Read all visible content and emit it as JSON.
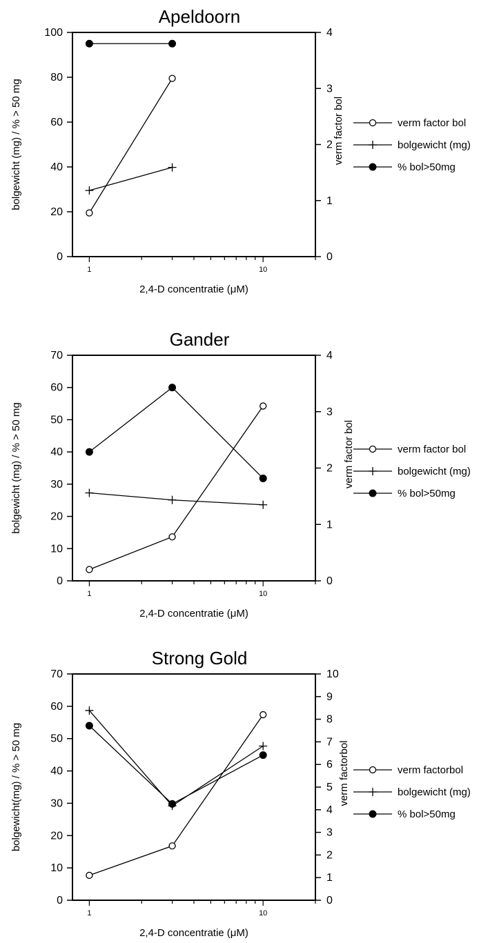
{
  "colors": {
    "line": "#000000",
    "open_marker_fill": "#ffffff",
    "filled_marker_fill": "#000000"
  },
  "chart_data": [
    {
      "type": "line",
      "title": "Apeldoorn",
      "xlabel": "2,4-D concentratie (μM)",
      "ylabel": "bolgewicht (mg) / % > 50 mg",
      "y2label": "verm factor bol",
      "x_scale": "log",
      "xlim": [
        0.8,
        20
      ],
      "x_tick_labels": [
        "1",
        "10"
      ],
      "ylim": [
        0,
        100
      ],
      "y_ticks": [
        0,
        20,
        40,
        60,
        80,
        100
      ],
      "y2lim": [
        0,
        4
      ],
      "y2_ticks": [
        0,
        1,
        2,
        3,
        4
      ],
      "legend_position": "right",
      "series": [
        {
          "name": "verm factor bol",
          "marker": "open-circle",
          "axis": "right",
          "x": [
            1,
            3
          ],
          "values": [
            0.78,
            3.18
          ]
        },
        {
          "name": "bolgewicht (mg)",
          "marker": "plus",
          "axis": "left",
          "x": [
            1,
            3
          ],
          "values": [
            29.5,
            39.8
          ]
        },
        {
          "name": "% bol>50mg",
          "marker": "filled-circle",
          "axis": "left",
          "x": [
            1,
            3
          ],
          "values": [
            95,
            95
          ]
        }
      ]
    },
    {
      "type": "line",
      "title": "Gander",
      "xlabel": "2,4-D concentratie (μM)",
      "ylabel": "bolgewicht (mg) / % > 50 mg",
      "y2label": "verm factor bol",
      "x_scale": "log",
      "xlim": [
        0.8,
        20
      ],
      "x_tick_labels": [
        "1",
        "10"
      ],
      "ylim": [
        0,
        70
      ],
      "y_ticks": [
        0,
        10,
        20,
        30,
        40,
        50,
        60,
        70
      ],
      "y2lim": [
        0,
        4
      ],
      "y2_ticks": [
        0,
        1,
        2,
        3,
        4
      ],
      "legend_position": "right",
      "series": [
        {
          "name": "verm factor bol",
          "marker": "open-circle",
          "axis": "right",
          "x": [
            1,
            3,
            10
          ],
          "values": [
            0.2,
            0.78,
            3.1
          ]
        },
        {
          "name": "bolgewicht (mg)",
          "marker": "plus",
          "axis": "left",
          "x": [
            1,
            3,
            10
          ],
          "values": [
            27.3,
            25.1,
            23.6
          ]
        },
        {
          "name": "% bol>50mg",
          "marker": "filled-circle",
          "axis": "left",
          "x": [
            1,
            3,
            10
          ],
          "values": [
            40,
            60,
            31.8
          ]
        }
      ]
    },
    {
      "type": "line",
      "title": "Strong Gold",
      "xlabel": "2,4-D concentratie (μM)",
      "ylabel": "bolgewicht(mg) / % > 50 mg",
      "y2label": "verm factorbol",
      "x_scale": "log",
      "xlim": [
        0.8,
        20
      ],
      "x_tick_labels": [
        "1",
        "10"
      ],
      "ylim": [
        0,
        70
      ],
      "y_ticks": [
        0,
        10,
        20,
        30,
        40,
        50,
        60,
        70
      ],
      "y2lim": [
        0,
        10
      ],
      "y2_ticks": [
        0,
        1,
        2,
        3,
        4,
        5,
        6,
        7,
        8,
        9,
        10
      ],
      "legend_position": "right",
      "series": [
        {
          "name": "verm factorbol",
          "marker": "open-circle",
          "axis": "right",
          "x": [
            1,
            3,
            10
          ],
          "values": [
            1.1,
            2.4,
            8.2
          ]
        },
        {
          "name": "bolgewicht (mg)",
          "marker": "plus",
          "axis": "left",
          "x": [
            1,
            3,
            10
          ],
          "values": [
            58.7,
            29.2,
            47.7
          ]
        },
        {
          "name": "% bol>50mg",
          "marker": "filled-circle",
          "axis": "left",
          "x": [
            1,
            3,
            10
          ],
          "values": [
            54,
            29.8,
            44.9
          ]
        }
      ]
    }
  ]
}
